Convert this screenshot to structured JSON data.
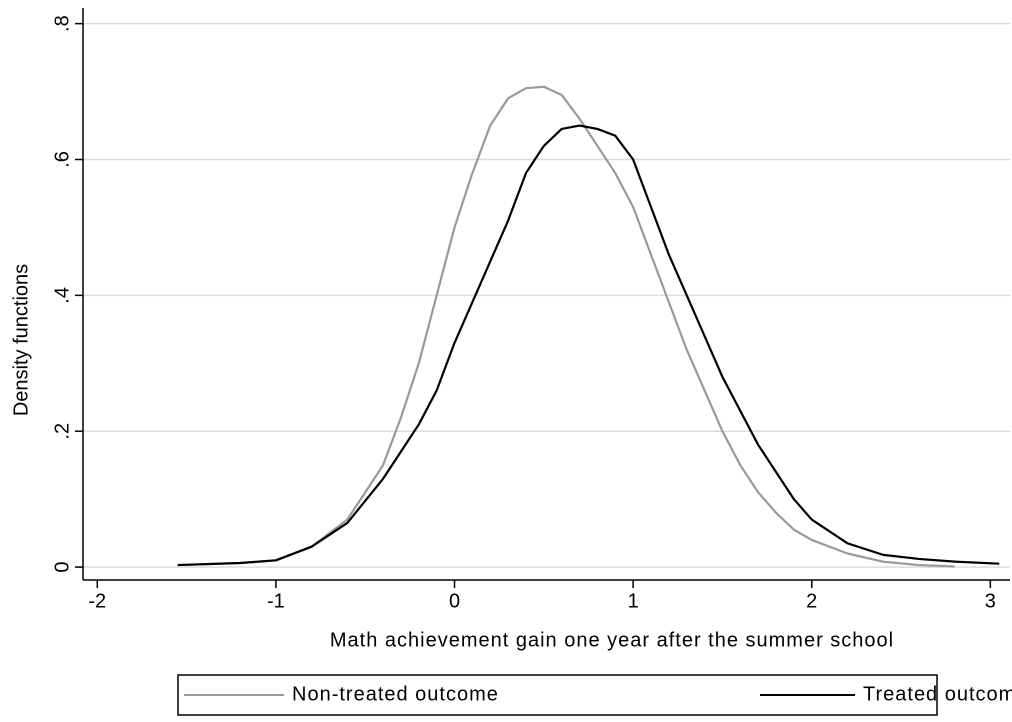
{
  "chart_data": {
    "type": "line",
    "xlabel": "Math achievement gain one year after the summer school",
    "ylabel": "Density functions",
    "x": [
      -1.55,
      -1.2,
      -1.0,
      -0.8,
      -0.6,
      -0.4,
      -0.3,
      -0.2,
      -0.1,
      0,
      0.1,
      0.2,
      0.3,
      0.4,
      0.5,
      0.6,
      0.7,
      0.8,
      0.9,
      1.0,
      1.1,
      1.2,
      1.3,
      1.4,
      1.5,
      1.6,
      1.7,
      1.8,
      1.9,
      2.0,
      2.2,
      2.4,
      2.6,
      2.8,
      3.05
    ],
    "series": [
      {
        "name": "Non-treated outcome",
        "color": "#999999",
        "values": [
          0.003,
          0.006,
          0.01,
          0.03,
          0.07,
          0.15,
          0.22,
          0.3,
          0.4,
          0.5,
          0.58,
          0.65,
          0.69,
          0.705,
          0.707,
          0.695,
          0.66,
          0.62,
          0.58,
          0.53,
          0.46,
          0.39,
          0.32,
          0.26,
          0.2,
          0.15,
          0.11,
          0.08,
          0.055,
          0.04,
          0.02,
          0.008,
          0.003,
          0.001,
          null
        ]
      },
      {
        "name": "Treated outcome",
        "color": "#000000",
        "values": [
          0.003,
          0.006,
          0.01,
          0.03,
          0.065,
          0.13,
          0.17,
          0.21,
          0.26,
          0.33,
          0.39,
          0.45,
          0.51,
          0.58,
          0.62,
          0.645,
          0.65,
          0.645,
          0.635,
          0.6,
          0.53,
          0.46,
          0.4,
          0.34,
          0.28,
          0.23,
          0.18,
          0.14,
          0.1,
          0.07,
          0.035,
          0.018,
          0.012,
          0.008,
          0.005
        ]
      }
    ],
    "xlim": [
      -2.08,
      3.11
    ],
    "xticks": [
      -2,
      -1,
      0,
      1,
      2,
      3
    ],
    "ylim": [
      -0.019,
      0.823
    ],
    "yticks": [
      0,
      {
        "value": 0.2,
        "label": ".2"
      },
      {
        "value": 0.4,
        "label": ".4"
      },
      {
        "value": 0.6,
        "label": ".6"
      },
      {
        "value": 0.8,
        "label": ".8"
      }
    ],
    "grid": true,
    "legend": "bottom"
  }
}
